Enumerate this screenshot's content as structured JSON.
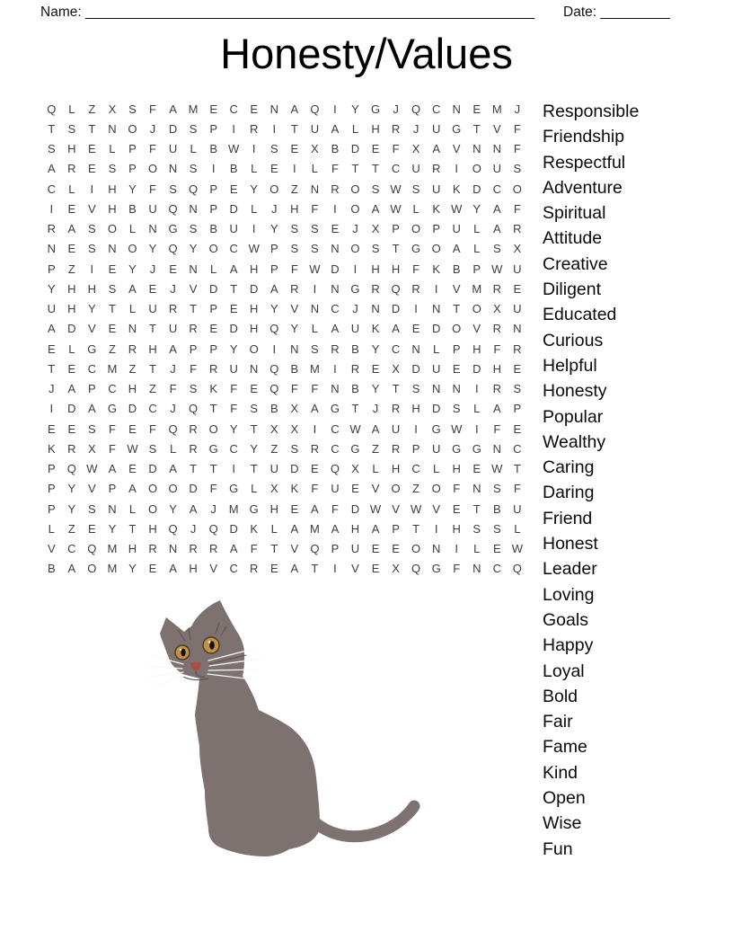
{
  "header": {
    "name_label": "Name:",
    "name_line": "__________________________________________________________",
    "date_label": "Date:",
    "date_line": "_________"
  },
  "title": "Honesty/Values",
  "grid": {
    "rows": [
      "QLZXSFAMECENAQIYGJQCNEMJ",
      "TSTNOJDSPIRITUALHRJUGTVF",
      "SHELPFULBWISEXBDEFXAVNNF",
      "ARESPONSIBLEILFTTCURIOUS",
      "CLIHYFSQPEYOZNROSWSUKDCO",
      "IEVHBUQNPDLJHFIOAWLKWYAF",
      "RASOLNGSBUIYSSEJXPOPULAR",
      "NESNOYQYOCWPSSNOSTGOALSX",
      "PZIEYJENLAHPFWDIHHFKBPWU",
      "YHHSAEJVDTDARINGRQRIVMRE",
      "UHYTLURTPEHYVNCJNDINTOXU",
      "ADVENTUREDHQYLAUKAEDOVRN",
      "ELGZRHAPPYOINSRBYCNLPHFR",
      "TECMZTJFRUNQBMIREXDUEDHE",
      "JAPCHZFSKFEQFFNBYTSNNIRS",
      "IDAGDCJQTFSBXAGTJRHDSLAP",
      "EESFEFQROYTXXICWAUIGWIFE",
      "KRXFWSLRGCYZSRCGZRPUGGNC",
      "PQWAEDATTITUDEQXLHCLHEWT",
      "PYVPAOODFGLXKFUEVOZOFNSF",
      "PYSNLOYAJMGHEAFDWVWVETBU",
      "LZEYTHQJQDKLAMAHAPTIHSSL",
      "VCQMHRNRRAFTVQPUEEONILEW",
      "BAOMYEAHVCREATIVEXQGFNCQ"
    ]
  },
  "words": [
    "Responsible",
    "Friendship",
    "Respectful",
    "Adventure",
    "Spiritual",
    "Attitude",
    "Creative",
    "Diligent",
    "Educated",
    "Curious",
    "Helpful",
    "Honesty",
    "Popular",
    "Wealthy",
    "Caring",
    "Daring",
    "Friend",
    "Honest",
    "Leader",
    "Loving",
    "Goals",
    "Happy",
    "Loyal",
    "Bold",
    "Fair",
    "Fame",
    "Kind",
    "Open",
    "Wise",
    "Fun"
  ],
  "illustration": {
    "name": "sitting-cat",
    "fur_color": "#7d7270",
    "eye_color": "#c49044",
    "eye_ring_color": "#4a3a28",
    "pupil_color": "#111111",
    "nose_color": "#a94f49",
    "whisker_color": "#f8f8f8",
    "dark_whisker_color": "#5f514d"
  }
}
